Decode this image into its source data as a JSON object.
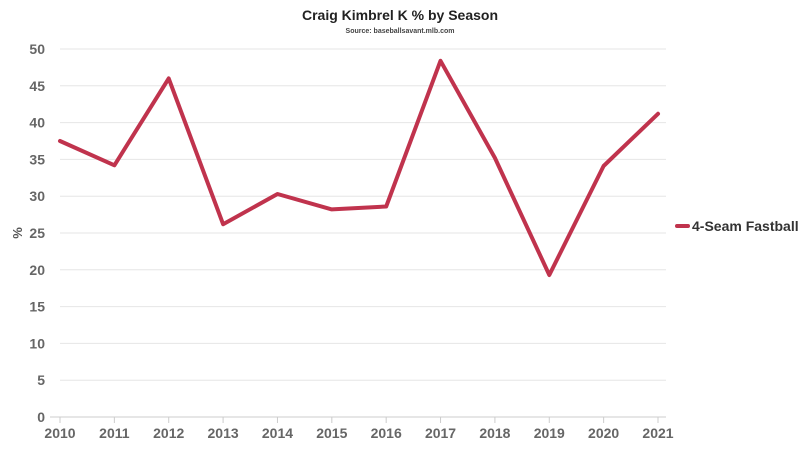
{
  "chart_data": {
    "type": "line",
    "title": "Craig Kimbrel K % by Season",
    "subtitle": "Source: baseballsavant.mlb.com",
    "xlabel": "",
    "ylabel": "%",
    "categories": [
      "2010",
      "2011",
      "2012",
      "2013",
      "2014",
      "2015",
      "2016",
      "2017",
      "2018",
      "2019",
      "2020",
      "2021"
    ],
    "yticks": [
      "0",
      "5",
      "10",
      "15",
      "20",
      "25",
      "30",
      "35",
      "40",
      "45",
      "50"
    ],
    "ylim": [
      0,
      50
    ],
    "grid": true,
    "legend_position": "right",
    "series": [
      {
        "name": "4-Seam Fastball",
        "color": "#c0334d",
        "values": [
          37.5,
          34.2,
          46.0,
          26.2,
          30.3,
          28.2,
          28.6,
          48.4,
          35.2,
          19.3,
          34.1,
          41.2
        ]
      }
    ]
  }
}
